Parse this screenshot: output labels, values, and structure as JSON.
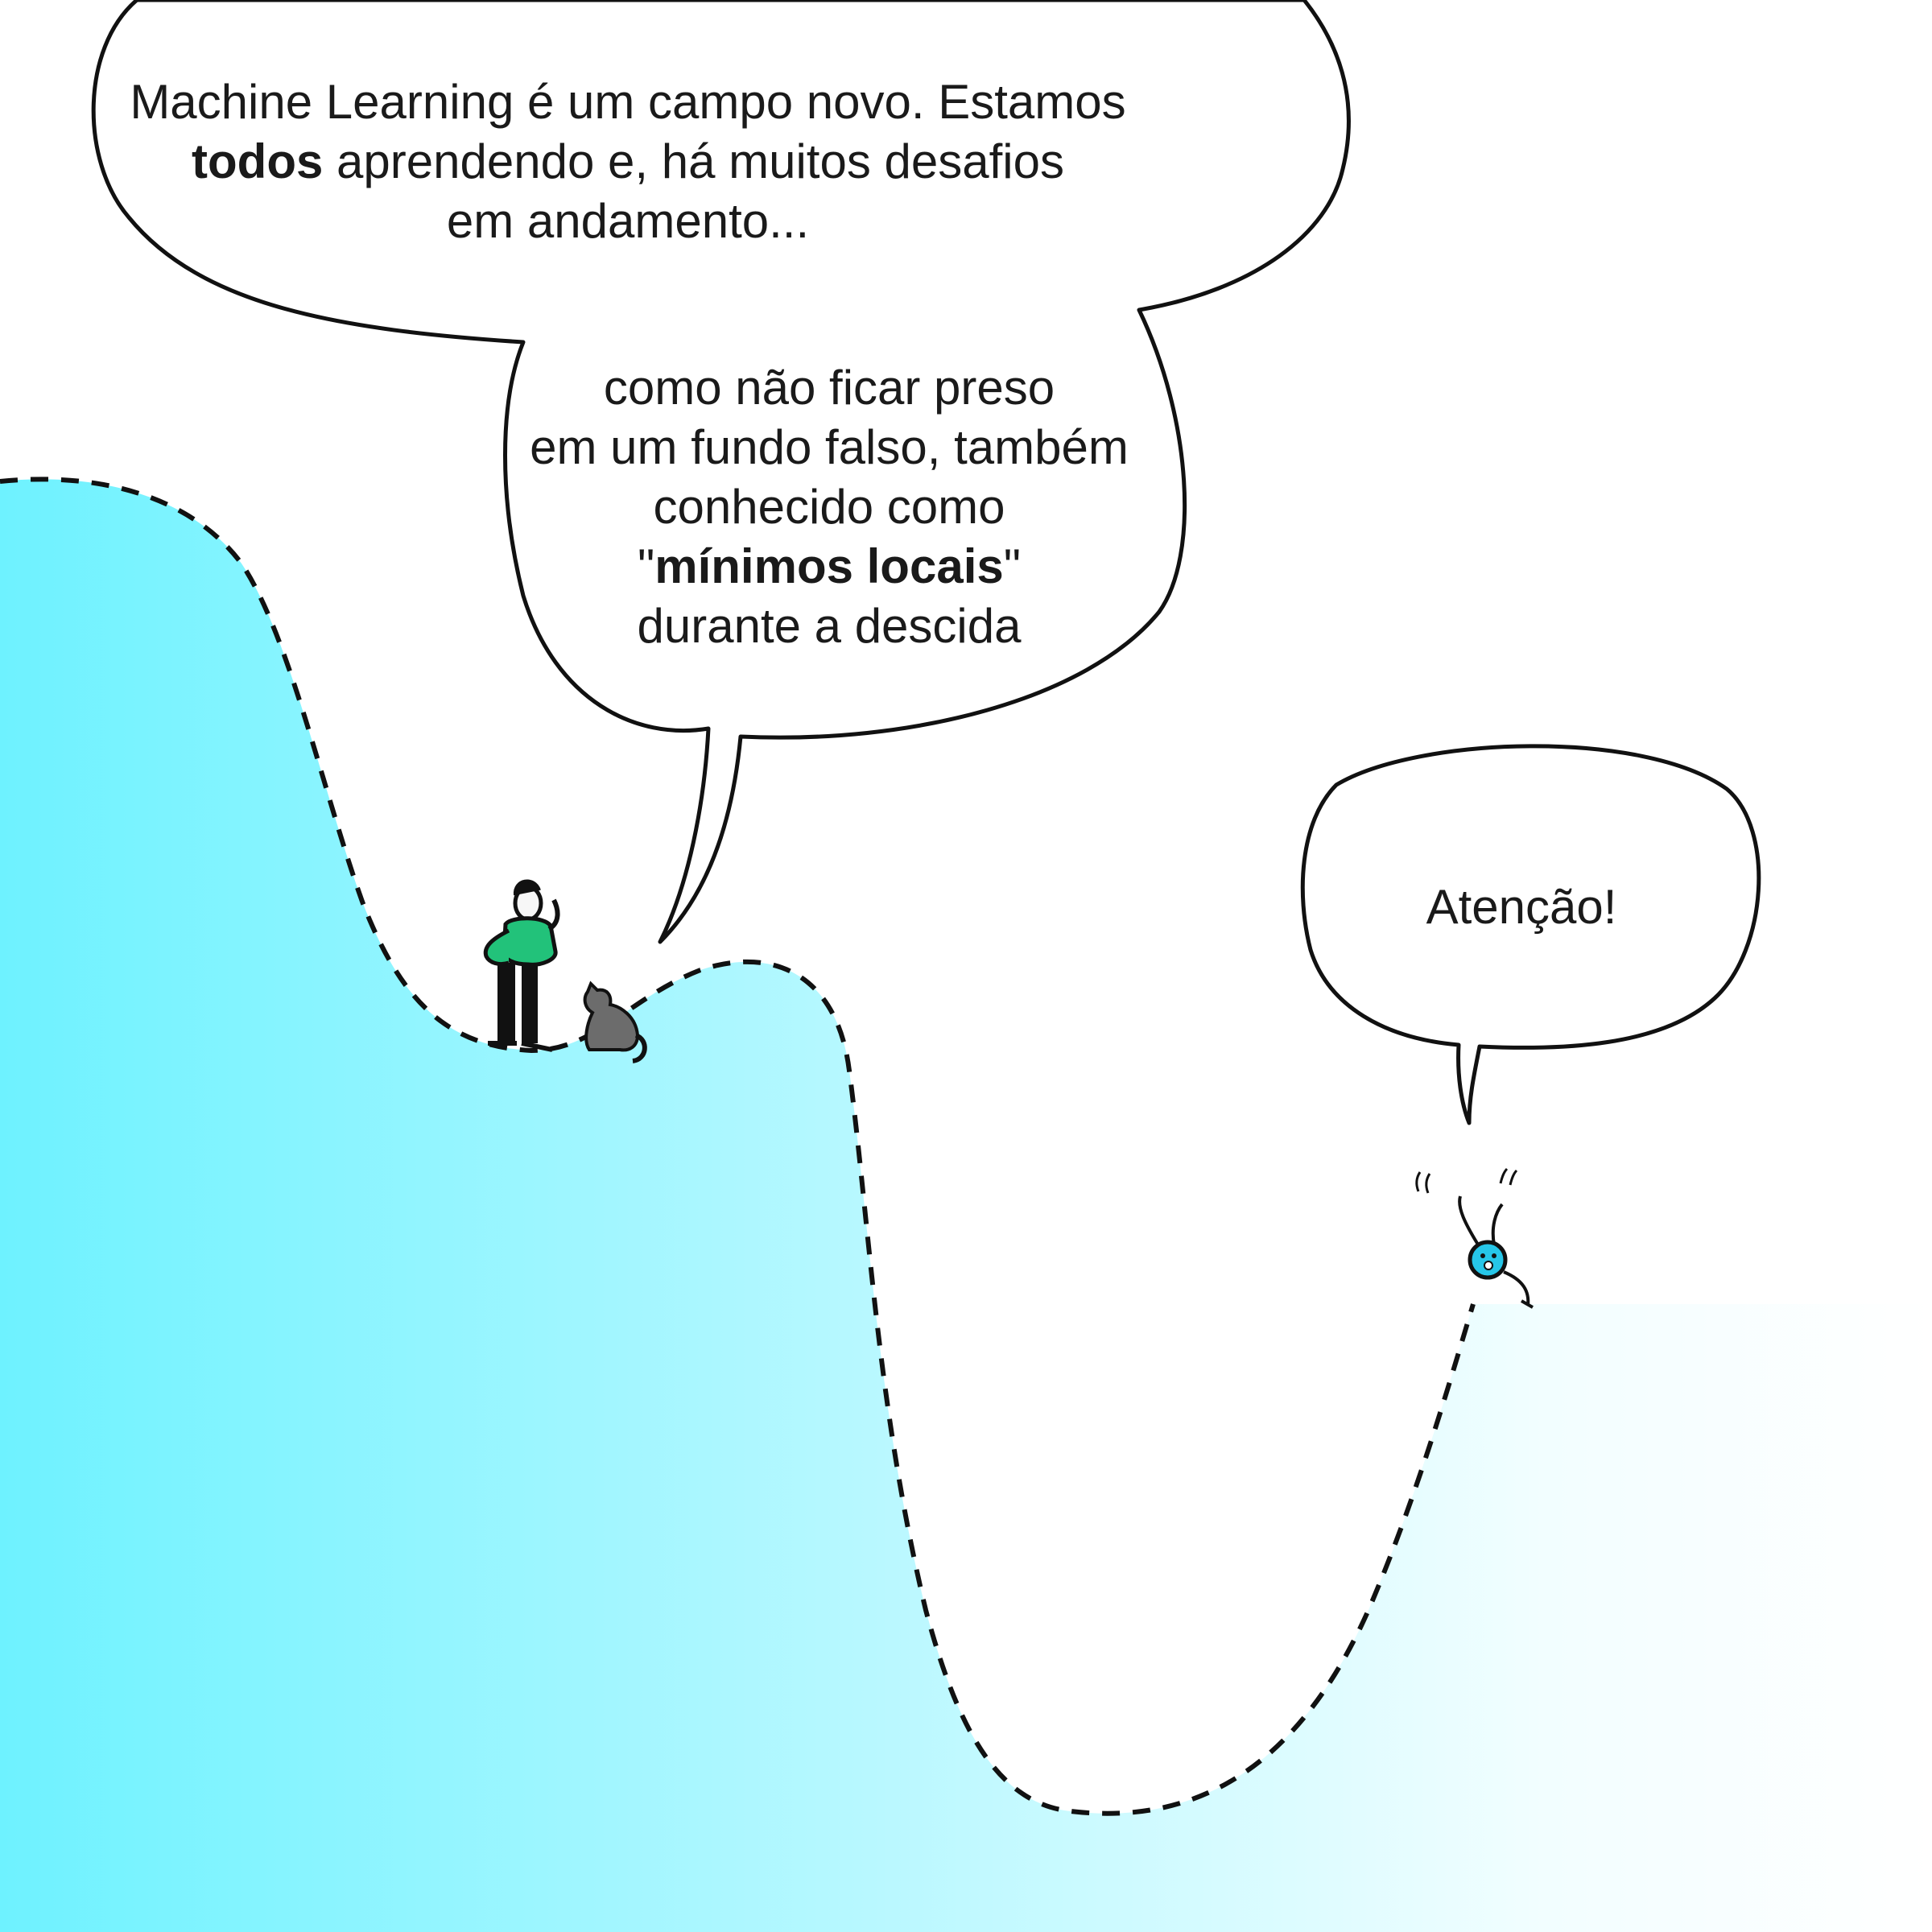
{
  "bubble_main": {
    "line1": "Machine Learning é um campo novo. Estamos",
    "line2_bold": "todos",
    "line2_rest": " aprendendo e, há muitos desafios",
    "line3": "em andamento...",
    "line4": "como não ficar preso",
    "line5": "em um fundo falso, também",
    "line6": "conhecido como",
    "line7_open": "\"",
    "line7_bold": "mínimos locais",
    "line7_close": "\"",
    "line8": "durante a descida"
  },
  "bubble_small": {
    "text": "Atenção!"
  },
  "colors": {
    "landscape_left": "#6ef2ff",
    "landscape_right": "#ffffff",
    "outline": "#111111",
    "shirt": "#22c27a",
    "cat": "#6c6c6c",
    "ball": "#26c6e8"
  }
}
